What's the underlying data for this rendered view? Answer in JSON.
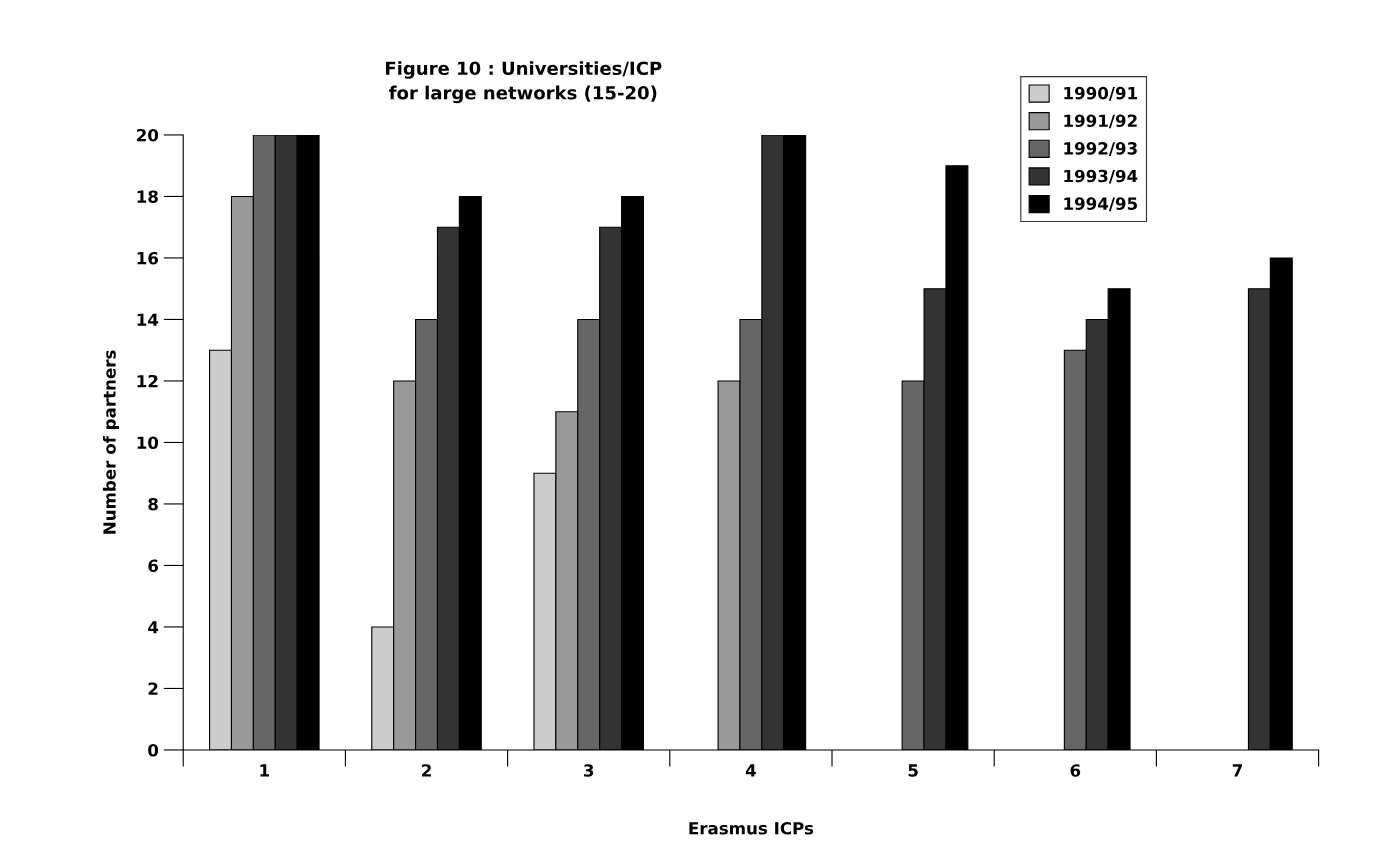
{
  "chart_data": {
    "type": "bar",
    "title": "Figure 10 : Universities/ICP\nfor large networks (15-20)",
    "xlabel": "Erasmus ICPs",
    "ylabel": "Number of partners",
    "categories": [
      "1",
      "2",
      "3",
      "4",
      "5",
      "6",
      "7"
    ],
    "series": [
      {
        "name": "1990/91",
        "color": "#cccccc",
        "values": [
          13,
          4,
          9,
          null,
          null,
          null,
          null
        ]
      },
      {
        "name": "1991/92",
        "color": "#999999",
        "values": [
          18,
          12,
          11,
          12,
          null,
          null,
          null
        ]
      },
      {
        "name": "1992/93",
        "color": "#666666",
        "values": [
          20,
          14,
          14,
          14,
          12,
          13,
          null
        ]
      },
      {
        "name": "1993/94",
        "color": "#333333",
        "values": [
          20,
          17,
          17,
          20,
          15,
          14,
          15
        ]
      },
      {
        "name": "1994/95",
        "color": "#000000",
        "values": [
          20,
          18,
          18,
          20,
          19,
          15,
          16
        ]
      }
    ],
    "ylim": [
      0,
      20
    ],
    "yticks": [
      0,
      2,
      4,
      6,
      8,
      10,
      12,
      14,
      16,
      18,
      20
    ],
    "grid": false,
    "legend": "top right"
  }
}
